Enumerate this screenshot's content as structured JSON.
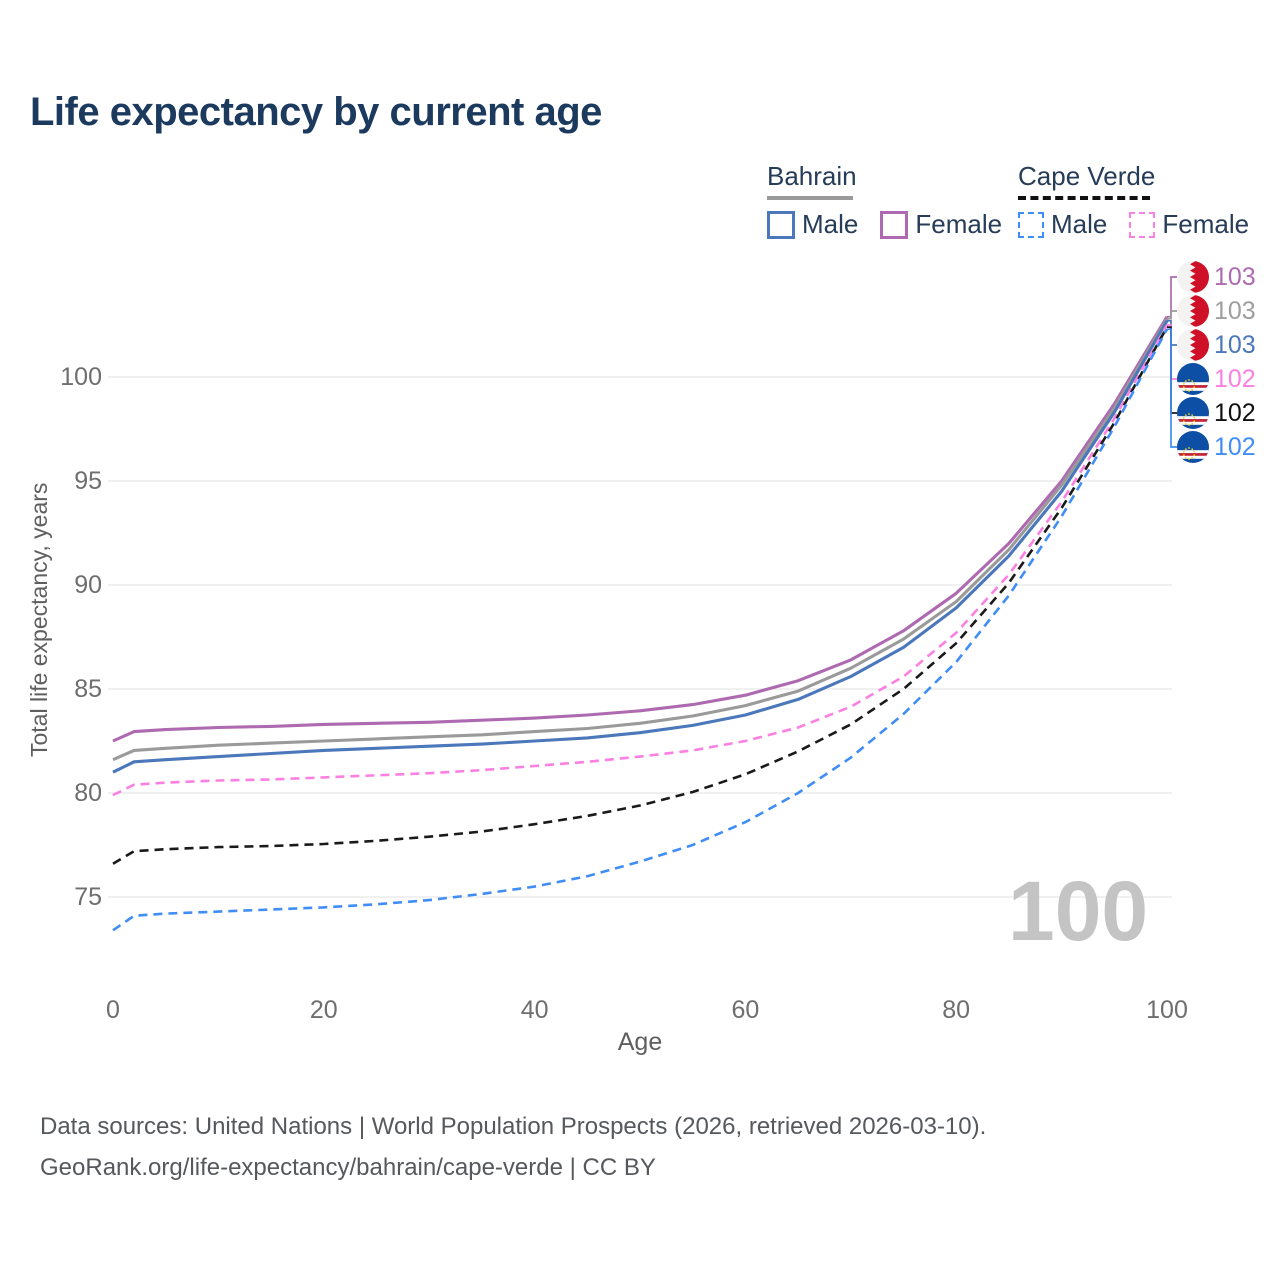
{
  "title": "Life expectancy by current age",
  "legend": {
    "groups": [
      {
        "label": "Bahrain",
        "line_style": "solid",
        "line_color": "#9a9a9a",
        "items": [
          {
            "label": "Male",
            "color": "#4b77bb",
            "dashed": false
          },
          {
            "label": "Female",
            "color": "#ae6ab0",
            "dashed": false
          }
        ]
      },
      {
        "label": "Cape Verde",
        "line_style": "dashed",
        "line_color": "#111111",
        "items": [
          {
            "label": "Male",
            "color": "#3f8df5",
            "dashed": true
          },
          {
            "label": "Female",
            "color": "#fb80e2",
            "dashed": true
          }
        ]
      }
    ]
  },
  "watermark": "100",
  "footer": {
    "line1": "Data sources: United Nations | World Population Prospects (2026, retrieved 2026-03-10).",
    "line2": "GeoRank.org/life-expectancy/bahrain/cape-verde | CC BY"
  },
  "chart_data": {
    "type": "line",
    "title": "Life expectancy by current age",
    "xlabel": "Age",
    "ylabel": "Total life expectancy, years",
    "xticks": [
      0,
      20,
      40,
      60,
      80,
      100
    ],
    "yticks": [
      75,
      80,
      85,
      90,
      95,
      100
    ],
    "xlim": [
      0,
      100
    ],
    "ylim": [
      73,
      104
    ],
    "grid": "horizontal",
    "legend_position": "top-right",
    "x": [
      0,
      2,
      5,
      10,
      15,
      20,
      25,
      30,
      35,
      40,
      45,
      50,
      55,
      60,
      65,
      70,
      75,
      80,
      85,
      90,
      95,
      100
    ],
    "series": [
      {
        "id": "bahrain-female",
        "name": "Bahrain Female",
        "color": "#ae6ab0",
        "dashed": false,
        "values": [
          82.5,
          82.95,
          83.05,
          83.15,
          83.2,
          83.3,
          83.35,
          83.4,
          83.5,
          83.6,
          83.75,
          83.95,
          84.25,
          84.7,
          85.4,
          86.4,
          87.8,
          89.6,
          92.0,
          95.0,
          98.7,
          102.9
        ]
      },
      {
        "id": "bahrain-overall",
        "name": "Bahrain Overall",
        "color": "#9a9a9a",
        "dashed": false,
        "values": [
          81.6,
          82.05,
          82.15,
          82.3,
          82.4,
          82.5,
          82.6,
          82.7,
          82.8,
          82.95,
          83.1,
          83.35,
          83.7,
          84.2,
          84.9,
          86.0,
          87.4,
          89.2,
          91.7,
          94.8,
          98.5,
          102.8
        ]
      },
      {
        "id": "bahrain-male",
        "name": "Bahrain Male",
        "color": "#4b77bb",
        "dashed": false,
        "values": [
          81.0,
          81.5,
          81.6,
          81.75,
          81.9,
          82.05,
          82.15,
          82.25,
          82.35,
          82.5,
          82.65,
          82.9,
          83.25,
          83.75,
          84.5,
          85.6,
          87.0,
          88.9,
          91.4,
          94.5,
          98.3,
          102.7
        ]
      },
      {
        "id": "capeverde-female",
        "name": "Cape Verde Female",
        "color": "#fb80e2",
        "dashed": true,
        "values": [
          79.9,
          80.4,
          80.5,
          80.6,
          80.65,
          80.75,
          80.85,
          80.95,
          81.1,
          81.3,
          81.5,
          81.75,
          82.05,
          82.5,
          83.15,
          84.15,
          85.6,
          87.7,
          90.5,
          94.0,
          98.0,
          102.5
        ]
      },
      {
        "id": "capeverde-overall",
        "name": "Cape Verde Overall",
        "color": "#1a1a1a",
        "dashed": true,
        "values": [
          76.6,
          77.2,
          77.3,
          77.4,
          77.45,
          77.55,
          77.7,
          77.9,
          78.15,
          78.5,
          78.9,
          79.4,
          80.05,
          80.9,
          82.0,
          83.3,
          85.0,
          87.2,
          90.1,
          93.7,
          97.8,
          102.4
        ]
      },
      {
        "id": "capeverde-male",
        "name": "Cape Verde Male",
        "color": "#3f8df5",
        "dashed": true,
        "values": [
          73.4,
          74.1,
          74.2,
          74.3,
          74.4,
          74.5,
          74.65,
          74.85,
          75.15,
          75.5,
          76.0,
          76.7,
          77.5,
          78.6,
          80.0,
          81.7,
          83.8,
          86.3,
          89.5,
          93.3,
          97.6,
          102.3
        ]
      }
    ],
    "end_labels": [
      {
        "flag": "bahrain",
        "value": "103",
        "color": "#ae6ab0"
      },
      {
        "flag": "bahrain",
        "value": "103",
        "color": "#9e9e9e"
      },
      {
        "flag": "bahrain",
        "value": "103",
        "color": "#4b77bb"
      },
      {
        "flag": "capeverde",
        "value": "102",
        "color": "#fb80e2"
      },
      {
        "flag": "capeverde",
        "value": "102",
        "color": "#111111"
      },
      {
        "flag": "capeverde",
        "value": "102",
        "color": "#3f8df5"
      }
    ]
  }
}
